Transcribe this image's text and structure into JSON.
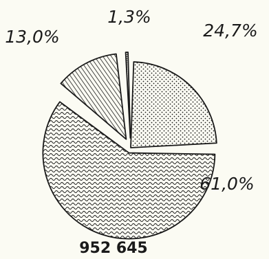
{
  "chart_data": {
    "type": "pie",
    "title": "",
    "slices": [
      {
        "label": "24,7%",
        "value": 24.7,
        "pattern": "dots",
        "exploded": false
      },
      {
        "label": "61,0%",
        "value": 61.0,
        "pattern": "wave",
        "exploded": true
      },
      {
        "label": "13,0%",
        "value": 13.0,
        "pattern": "hatch",
        "exploded": true
      },
      {
        "label": "1,3%",
        "value": 1.3,
        "pattern": "dots-fine",
        "exploded": true
      }
    ],
    "total_label": "952 645",
    "colors": {
      "ink": "#1a1a1a",
      "background": "#fbfbf3"
    }
  }
}
